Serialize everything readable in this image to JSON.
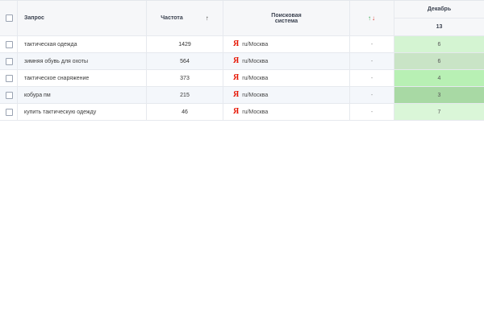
{
  "header": {
    "query_label": "Запрос",
    "frequency_label": "Частота",
    "frequency_sort_arrow": "↑",
    "engine_label": "Поисковая система",
    "change_up": "↑",
    "change_down": "↓",
    "month": "Декабрь",
    "day": "13"
  },
  "colors": {
    "up_arrow": "#2fa84f",
    "down_arrow": "#d9342b",
    "yandex_logo": "#e61400"
  },
  "rows": [
    {
      "query": "тактическая одежда",
      "frequency": "1429",
      "engine_logo": "Я",
      "region": "ru/Москва",
      "change": "-",
      "position": "6",
      "position_color": "#d4f4d2"
    },
    {
      "query": "зимняя обувь для охоты",
      "frequency": "564",
      "engine_logo": "Я",
      "region": "ru/Москва",
      "change": "-",
      "position": "6",
      "position_color": "#c9e4c6"
    },
    {
      "query": "тактическое снаряжение",
      "frequency": "373",
      "engine_logo": "Я",
      "region": "ru/Москва",
      "change": "-",
      "position": "4",
      "position_color": "#b8f0b4"
    },
    {
      "query": "кобура пм",
      "frequency": "215",
      "engine_logo": "Я",
      "region": "ru/Москва",
      "change": "-",
      "position": "3",
      "position_color": "#a8d9a4"
    },
    {
      "query": "купить тактическую одежду",
      "frequency": "46",
      "engine_logo": "Я",
      "region": "ru/Москва",
      "change": "-",
      "position": "7",
      "position_color": "#daf6d8"
    }
  ]
}
